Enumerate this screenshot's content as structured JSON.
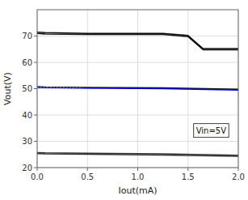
{
  "chart_data": {
    "type": "line",
    "x_label": "Iout(mA)",
    "y_label": "Vout(V)",
    "xlim": [
      0,
      2
    ],
    "ylim": [
      20,
      80
    ],
    "xticks": [
      {
        "value": 0,
        "label": "0.0"
      },
      0.5,
      {
        "value": 1.0,
        "label": "1.0"
      },
      1.5,
      {
        "value": 2.0,
        "label": "2.0"
      }
    ],
    "yticks": [
      20,
      30,
      40,
      50,
      60,
      70
    ],
    "grid": true,
    "annotations": [
      {
        "text": "Vin=5V"
      }
    ],
    "series": [
      {
        "color": "#111111",
        "x": [
          0.0,
          0.08,
          0.5,
          1.25,
          1.5,
          1.65,
          2.0
        ],
        "values": [
          71.5,
          71.3,
          71.0,
          71.0,
          70.2,
          65.2,
          65.2
        ]
      },
      {
        "color": "#111111",
        "x": [
          0.0,
          0.08,
          0.5,
          1.25,
          1.5,
          1.65,
          2.0
        ],
        "values": [
          71.0,
          70.8,
          70.6,
          70.6,
          69.8,
          64.8,
          64.8
        ]
      },
      {
        "color": "#111111",
        "x": [
          0.0,
          0.08,
          0.45,
          1.25,
          2.0
        ],
        "values": [
          50.8,
          50.6,
          50.5,
          50.3,
          49.8
        ]
      },
      {
        "color": "#0000dd",
        "x": [
          0.0,
          0.08,
          0.45,
          1.25,
          2.0
        ],
        "values": [
          50.5,
          50.35,
          50.2,
          50.0,
          49.5
        ]
      },
      {
        "color": "#888888",
        "line_style": "dotted",
        "x": [
          0.0,
          0.45
        ],
        "values": [
          50.5,
          50.2
        ]
      },
      {
        "color": "#333333",
        "x": [
          0.0,
          0.08,
          0.5,
          1.25,
          2.0
        ],
        "values": [
          25.7,
          25.6,
          25.5,
          25.2,
          24.7
        ]
      },
      {
        "color": "#333333",
        "x": [
          0.0,
          0.08,
          0.5,
          1.25,
          2.0
        ],
        "values": [
          25.3,
          25.2,
          25.1,
          24.8,
          24.3
        ]
      }
    ]
  }
}
